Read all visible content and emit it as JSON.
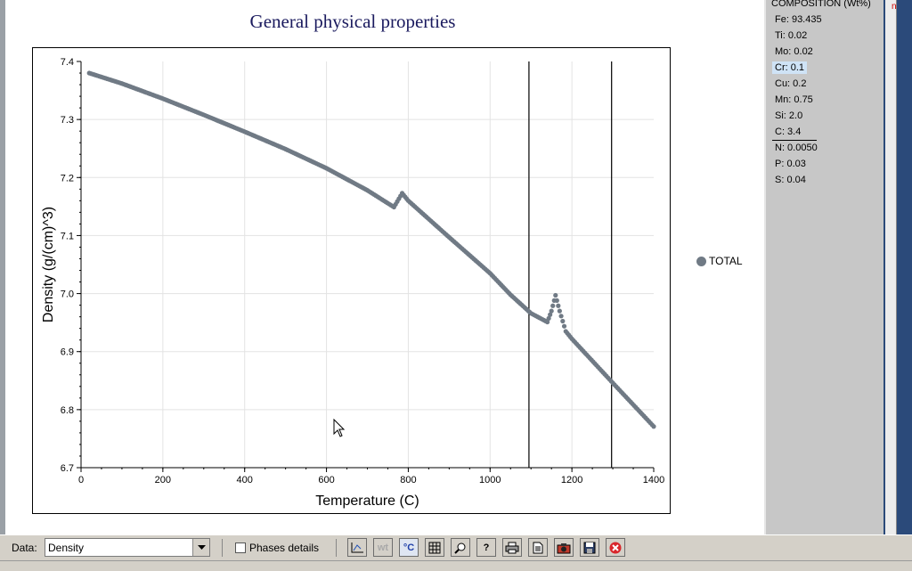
{
  "chart_data": {
    "type": "scatter",
    "title": "General physical properties",
    "xlabel": "Temperature (C)",
    "ylabel": "Density (g/(cm)^3)",
    "xlim": [
      0,
      1400
    ],
    "ylim": [
      6.7,
      7.4
    ],
    "xticks": [
      "0",
      "200",
      "400",
      "600",
      "800",
      "1000",
      "1200",
      "1400"
    ],
    "yticks": [
      "6.7",
      "6.8",
      "6.9",
      "7.0",
      "7.1",
      "7.2",
      "7.3",
      "7.4"
    ],
    "grid": true,
    "legend_position": "right",
    "vertical_lines": [
      1095,
      1297
    ],
    "series": [
      {
        "name": "TOTAL",
        "color": "#707a85",
        "x": [
          20,
          100,
          200,
          300,
          400,
          500,
          600,
          700,
          765,
          785,
          800,
          900,
          1000,
          1050,
          1100,
          1140,
          1150,
          1160,
          1170,
          1185,
          1200,
          1300,
          1400
        ],
        "y": [
          7.38,
          7.362,
          7.336,
          7.308,
          7.279,
          7.249,
          7.216,
          7.178,
          7.149,
          7.173,
          7.16,
          7.097,
          7.035,
          6.998,
          6.966,
          6.951,
          6.97,
          6.997,
          6.97,
          6.935,
          6.922,
          6.846,
          6.771
        ]
      }
    ]
  },
  "legend": {
    "label": "TOTAL"
  },
  "composition": {
    "title": "COMPOSITION (Wt%)",
    "items": [
      "Fe: 93.435",
      "Ti: 0.02",
      "Mo: 0.02",
      "Cr: 0.1",
      "Cu: 0.2",
      "Mn: 0.75",
      "Si: 2.0",
      "C: 3.4",
      "N: 0.0050",
      "P: 0.03",
      "S: 0.04"
    ]
  },
  "right_strip": {
    "text": "n"
  },
  "toolbar": {
    "data_label": "Data:",
    "data_value": "Density",
    "phases_label": "Phases details",
    "wt_label": "wt",
    "celsius_label": "°C",
    "help_label": "?"
  }
}
